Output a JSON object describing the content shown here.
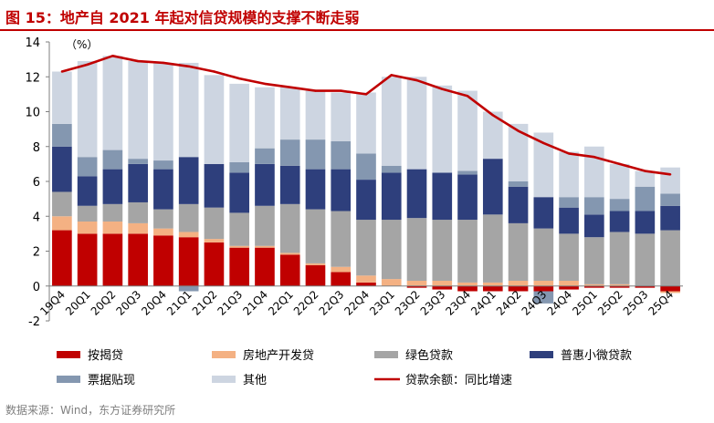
{
  "header": {
    "title": "图 15：地产自 2021 年起对信贷规模的支撑不断走弱"
  },
  "footer": {
    "source": "数据来源：Wind，东方证券研究所"
  },
  "colors": {
    "按揭贷": "#c00000",
    "房地产开发贷": "#f4b183",
    "绿色贷款": "#a5a5a5",
    "普惠小微贷款": "#2e3f7c",
    "票据贴现": "#8497b0",
    "其他": "#cdd5e1",
    "贷款余额：同比增速": "#c00000"
  },
  "chart_data": {
    "type": "bar",
    "stacked": true,
    "title": "",
    "ylabel": "（%）",
    "ylim": [
      -2,
      14
    ],
    "yticks": [
      -2,
      0,
      2,
      4,
      6,
      8,
      10,
      12,
      14
    ],
    "grid": false,
    "legend_position": "bottom",
    "categories": [
      "19Q4",
      "20Q1",
      "20Q2",
      "20Q3",
      "20Q4",
      "21Q1",
      "21Q2",
      "21Q3",
      "21Q4",
      "22Q1",
      "22Q2",
      "22Q3",
      "22Q4",
      "23Q1",
      "23Q2",
      "23Q3",
      "23Q4",
      "24Q1",
      "24Q2",
      "24Q3",
      "24Q4",
      "25Q1",
      "25Q2",
      "25Q3",
      "25Q4"
    ],
    "series": [
      {
        "name": "按揭贷",
        "values": [
          3.2,
          3.0,
          3.0,
          3.0,
          2.9,
          2.8,
          2.5,
          2.2,
          2.2,
          1.8,
          1.2,
          0.8,
          0.2,
          0.0,
          -0.1,
          -0.2,
          -0.3,
          -0.3,
          -0.3,
          -0.3,
          -0.2,
          -0.1,
          -0.1,
          -0.1,
          -0.3
        ]
      },
      {
        "name": "房地产开发贷",
        "values": [
          0.8,
          0.7,
          0.7,
          0.6,
          0.4,
          0.3,
          0.2,
          0.1,
          0.1,
          0.1,
          0.1,
          0.3,
          0.4,
          0.4,
          0.3,
          0.3,
          0.2,
          0.2,
          0.3,
          0.3,
          0.3,
          0.1,
          0.1,
          0.0,
          -0.1
        ]
      },
      {
        "name": "绿色贷款",
        "values": [
          1.4,
          0.9,
          1.0,
          1.2,
          1.1,
          1.6,
          1.8,
          1.9,
          2.3,
          2.8,
          3.1,
          3.2,
          3.2,
          3.4,
          3.6,
          3.5,
          3.6,
          3.9,
          3.3,
          3.0,
          2.7,
          2.7,
          3.0,
          3.0,
          3.2
        ]
      },
      {
        "name": "普惠小微贷款",
        "values": [
          2.6,
          1.7,
          2.0,
          2.2,
          2.3,
          2.7,
          2.5,
          2.3,
          2.4,
          2.2,
          2.3,
          2.4,
          2.3,
          2.7,
          2.8,
          2.7,
          2.6,
          3.2,
          2.1,
          1.8,
          1.5,
          1.3,
          1.2,
          1.3,
          1.4
        ]
      },
      {
        "name": "票据贴现",
        "values": [
          1.3,
          1.1,
          1.1,
          0.3,
          0.5,
          -0.3,
          0.0,
          0.6,
          0.9,
          1.5,
          1.7,
          1.6,
          1.5,
          0.4,
          0.0,
          0.0,
          0.2,
          0.0,
          0.3,
          -0.7,
          0.6,
          1.0,
          0.7,
          1.4,
          0.7
        ]
      },
      {
        "name": "其他",
        "values": [
          3.0,
          5.5,
          5.4,
          5.6,
          5.6,
          5.4,
          5.1,
          4.5,
          3.5,
          3.0,
          2.8,
          2.8,
          3.5,
          5.1,
          5.3,
          5.0,
          4.6,
          2.7,
          3.3,
          3.7,
          2.6,
          2.9,
          2.0,
          0.9,
          1.5
        ]
      }
    ],
    "line_series": {
      "name": "贷款余额：同比增速",
      "values": [
        12.3,
        12.7,
        13.2,
        12.9,
        12.8,
        12.6,
        12.3,
        11.9,
        11.6,
        11.4,
        11.2,
        11.2,
        11.0,
        12.1,
        11.8,
        11.3,
        10.9,
        9.8,
        8.9,
        8.2,
        7.6,
        7.4,
        7.0,
        6.6,
        6.4
      ]
    }
  }
}
